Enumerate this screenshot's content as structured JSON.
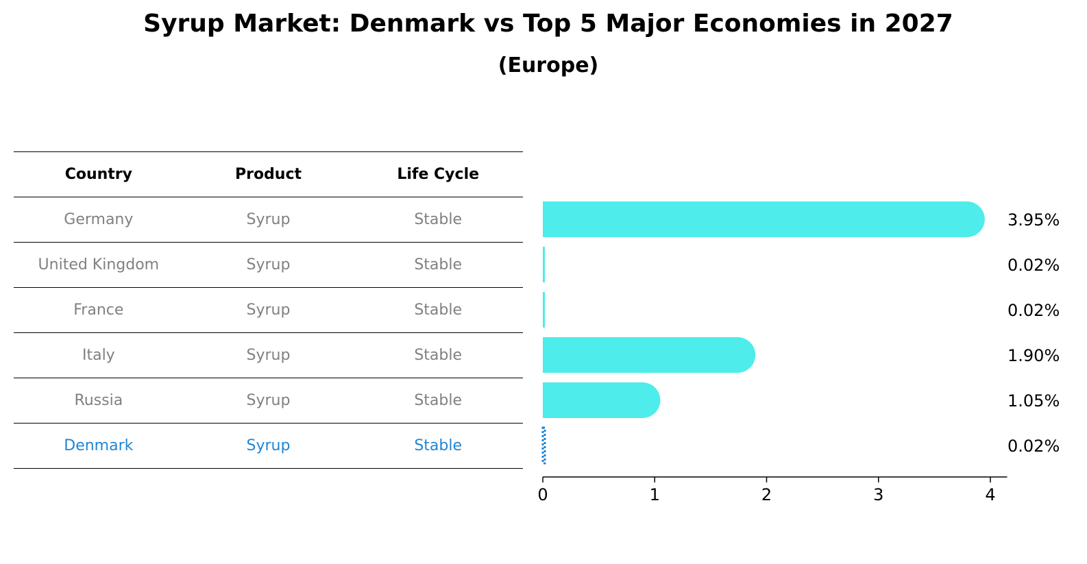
{
  "title": "Syrup Market: Denmark vs Top 5 Major Economies in 2027",
  "subtitle": "(Europe)",
  "table": {
    "headers": [
      "Country",
      "Product",
      "Life Cycle"
    ],
    "rows": [
      [
        "Germany",
        "Syrup",
        "Stable"
      ],
      [
        "United Kingdom",
        "Syrup",
        "Stable"
      ],
      [
        "France",
        "Syrup",
        "Stable"
      ],
      [
        "Italy",
        "Syrup",
        "Stable"
      ],
      [
        "Russia",
        "Syrup",
        "Stable"
      ],
      [
        "Denmark",
        "Syrup",
        "Stable"
      ]
    ],
    "highlight_row": "Denmark"
  },
  "colors": {
    "bar": "#4eecea",
    "highlight": "#1f86d4",
    "muted_text": "#808080"
  },
  "chart_data": {
    "type": "bar",
    "orientation": "horizontal",
    "categories": [
      "Germany",
      "United Kingdom",
      "France",
      "Italy",
      "Russia",
      "Denmark"
    ],
    "values": [
      3.95,
      0.02,
      0.02,
      1.9,
      1.05,
      0.02
    ],
    "value_labels": [
      "3.95%",
      "0.02%",
      "0.02%",
      "1.90%",
      "1.05%",
      "0.02%"
    ],
    "xlim": [
      0,
      4.15
    ],
    "xticks": [
      0,
      1,
      2,
      3,
      4
    ],
    "xlabel": "",
    "ylabel": "",
    "grid": false
  }
}
